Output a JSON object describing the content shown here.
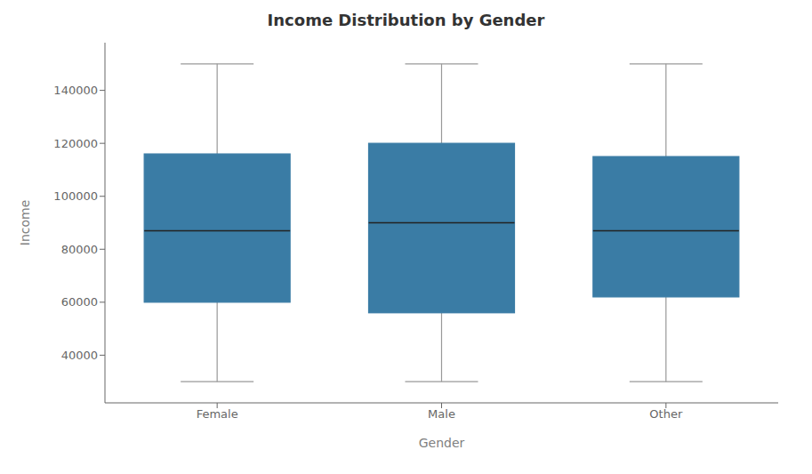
{
  "chart_data": {
    "type": "box",
    "title": "Income Distribution by Gender",
    "xlabel": "Gender",
    "ylabel": "Income",
    "categories": [
      "Female",
      "Male",
      "Other"
    ],
    "whislo": [
      30000,
      30000,
      30000
    ],
    "q1": [
      60000,
      56000,
      62000
    ],
    "med": [
      87000,
      90000,
      87000
    ],
    "q3": [
      116000,
      120000,
      115000
    ],
    "whishi": [
      150000,
      150000,
      150000
    ],
    "color": "#3a7ca5",
    "ylim": [
      22000,
      158000
    ],
    "yticks": [
      40000,
      60000,
      80000,
      100000,
      120000,
      140000
    ],
    "grid": false
  }
}
